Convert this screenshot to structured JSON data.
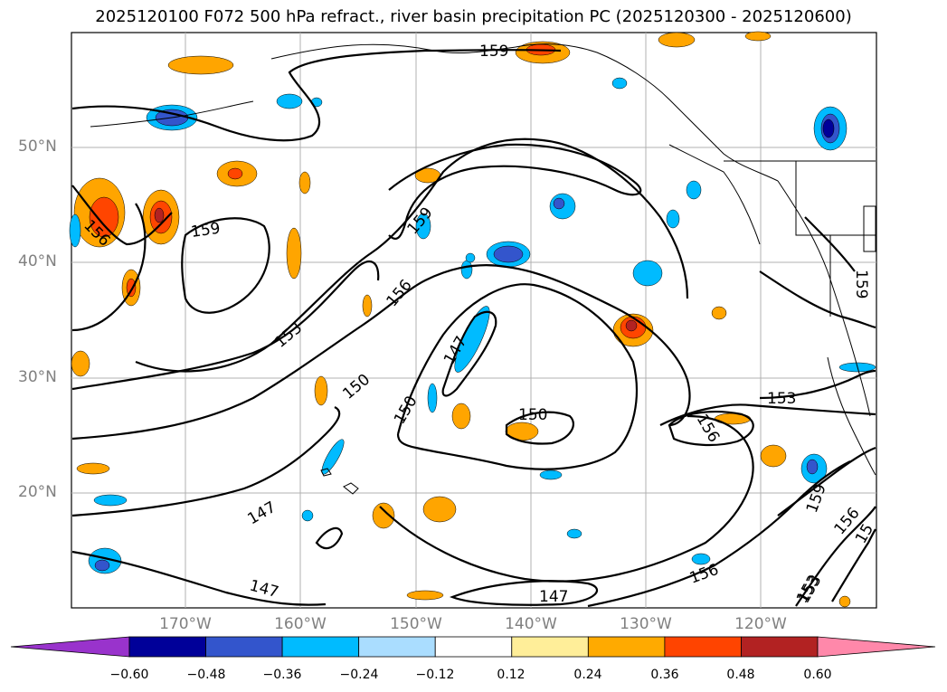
{
  "title": "2025120100 F072 500 hPa refract., river basin precipitation PC (2025120300 - 2025120600)",
  "map": {
    "lat_labels": [
      "50°N",
      "40°N",
      "30°N",
      "20°N"
    ],
    "lon_labels": [
      "170°W",
      "160°W",
      "150°W",
      "140°W",
      "130°W",
      "120°W"
    ],
    "contour_labels": [
      "159",
      "159",
      "156",
      "159",
      "156",
      "153",
      "150",
      "147",
      "150",
      "150",
      "153",
      "156",
      "159",
      "156",
      "153",
      "159",
      "147",
      "147",
      "147",
      "156",
      "153",
      "15"
    ],
    "gridlines": true
  },
  "colorbar": {
    "ticks": [
      "−0.60",
      "−0.48",
      "−0.36",
      "−0.24",
      "−0.12",
      "0.12",
      "0.24",
      "0.36",
      "0.48",
      "0.60"
    ],
    "colors": [
      "#9933cc",
      "#000099",
      "#3355cc",
      "#00bbff",
      "#aaddff",
      "#ffffff",
      "#ffee99",
      "#ffaa00",
      "#ff4400",
      "#b22222",
      "#ff88aa"
    ],
    "extend": "both"
  },
  "colors": {
    "contour": "#000000",
    "grid": "#b0b0b0",
    "orange": "#ffa500",
    "red": "#ff4500",
    "darkred": "#b22222",
    "lightblue": "#00bbff",
    "blue": "#3355cc",
    "navy": "#000099"
  }
}
